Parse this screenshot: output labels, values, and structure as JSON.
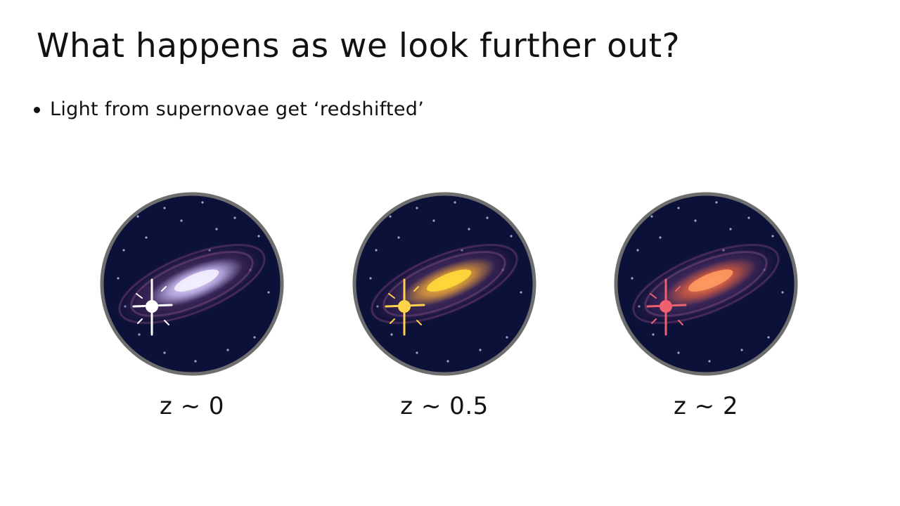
{
  "slide": {
    "title": "What happens as we look further out?",
    "bullets": [
      {
        "text": "Light from supernovae get ‘redshifted’"
      }
    ]
  },
  "panels": [
    {
      "label": "z ~ 0",
      "supernova_color": "#ffffff",
      "core_color": "#f4f0ff",
      "glow_color": "#cfc7ff"
    },
    {
      "label": "z ~ 0.5",
      "supernova_color": "#ffd24a",
      "core_color": "#ffd93a",
      "glow_color": "#e8a030"
    },
    {
      "label": "z ~ 2",
      "supernova_color": "#f0606e",
      "core_color": "#ff9a60",
      "glow_color": "#d85a3a"
    }
  ],
  "colors": {
    "sky": "#0b1138",
    "frame": "#6e6e6e",
    "star": "#9aa6c8"
  }
}
